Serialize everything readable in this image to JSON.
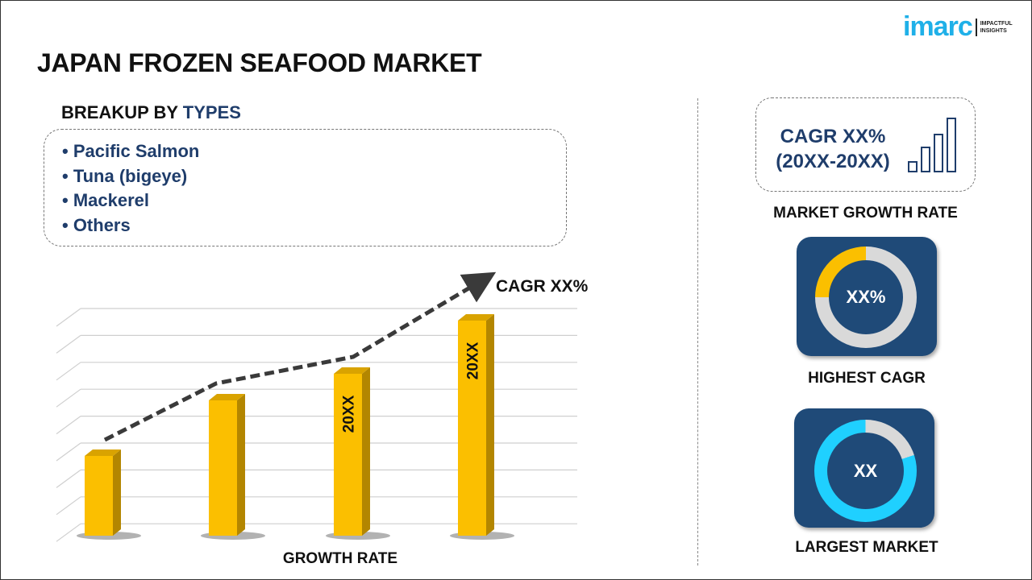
{
  "title": "JAPAN FROZEN SEAFOOD MARKET",
  "logo": {
    "word": "imarc",
    "tagline_1": "IMPACTFUL",
    "tagline_2": "INSIGHTS"
  },
  "breakup": {
    "prefix": "BREAKUP BY ",
    "highlight": "TYPES",
    "items": [
      "• Pacific Salmon",
      "• Tuna (bigeye)",
      "• Mackerel",
      "• Others"
    ]
  },
  "chart_data": {
    "type": "bar",
    "categories": [
      "",
      "",
      "",
      ""
    ],
    "values": [
      0.33,
      0.56,
      0.67,
      0.89
    ],
    "bar_labels": [
      "",
      "",
      "20XX",
      "20XX"
    ],
    "xlabel": "GROWTH RATE",
    "trend_label": "CAGR XX%",
    "grid": true,
    "colors": {
      "bar": "#fbbf00",
      "bar_side": "#b38600"
    }
  },
  "right": {
    "cagr_line1": "CAGR XX%",
    "cagr_line2": "(20XX-20XX)",
    "growth_label": "MARKET GROWTH RATE",
    "highest": {
      "value": "XX%",
      "label": "HIGHEST CAGR",
      "fill": 0.25,
      "color": "#fbbf00"
    },
    "largest": {
      "value": "XX",
      "label": "LARGEST MARKET",
      "fill": 0.8,
      "color": "#1fd0ff"
    }
  }
}
